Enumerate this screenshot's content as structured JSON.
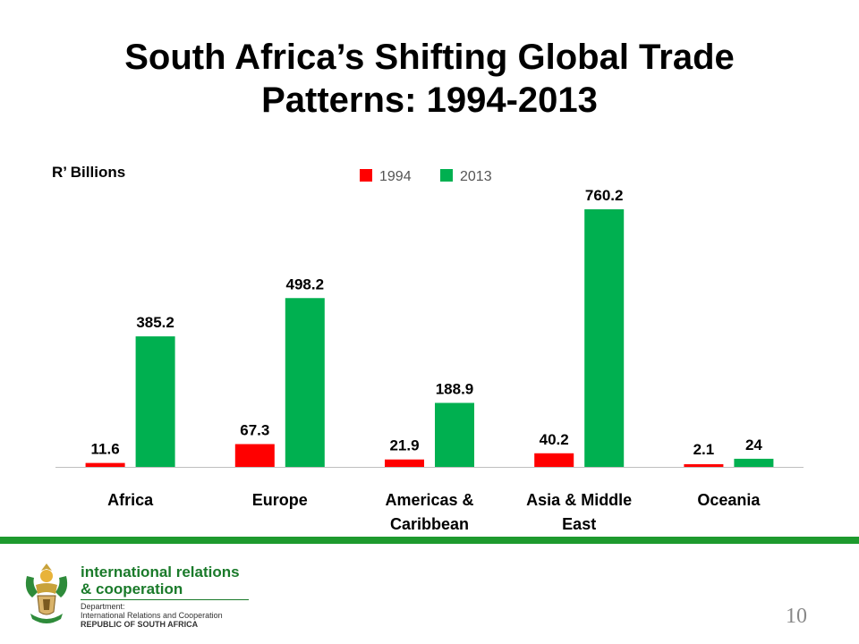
{
  "title": {
    "line1": "South Africa’s Shifting Global Trade",
    "line2": "Patterns: 1994-2013"
  },
  "chart_data": {
    "type": "bar",
    "ylabel": "R’ Billions",
    "categories": [
      [
        "Africa"
      ],
      [
        "Europe"
      ],
      [
        "Americas &",
        "Caribbean"
      ],
      [
        "Asia & Middle",
        "East"
      ],
      [
        "Oceania"
      ]
    ],
    "series": [
      {
        "name": "1994",
        "color": "#ff0000",
        "values": [
          11.6,
          67.3,
          21.9,
          40.2,
          2.1
        ],
        "labels": [
          "11.6",
          "67.3",
          "21.9",
          "40.2",
          "2.1"
        ]
      },
      {
        "name": "2013",
        "color": "#00b050",
        "values": [
          385.2,
          498.2,
          188.9,
          760.2,
          24
        ],
        "labels": [
          "385.2",
          "498.2",
          "188.9",
          "760.2",
          "24"
        ]
      }
    ],
    "legend": "top-center",
    "grid": false
  },
  "footer": {
    "org_line1": "international relations",
    "org_line2": "& cooperation",
    "dept_label": "Department:",
    "dept_name": "International Relations and Cooperation",
    "country": "REPUBLIC OF SOUTH AFRICA"
  },
  "page_number": "10",
  "colors": {
    "accent_green": "#1e9a2e",
    "logo_green": "#1a7a2a"
  }
}
